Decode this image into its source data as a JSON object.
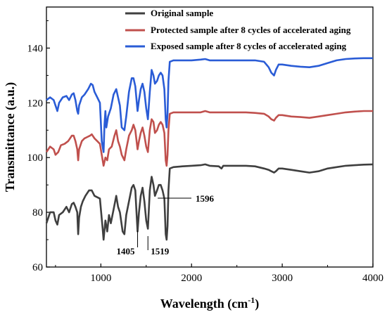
{
  "chart_data": {
    "type": "line",
    "title": "",
    "xlabel": "Wavelength (cm",
    "xlabel_sup": "-1",
    "xlabel_suffix": ")",
    "ylabel": "Transmittance (a.u.)",
    "xlim": [
      400,
      4000
    ],
    "ylim": [
      60,
      155
    ],
    "xticks": [
      1000,
      2000,
      3000,
      4000
    ],
    "yticks": [
      60,
      80,
      100,
      120,
      140
    ],
    "grid": false,
    "legend_position": "top-center",
    "series": [
      {
        "name": "Original sample",
        "color": "#3f3f3f",
        "points": [
          [
            400,
            76
          ],
          [
            440,
            80
          ],
          [
            480,
            80
          ],
          [
            500,
            77
          ],
          [
            520,
            75.5
          ],
          [
            540,
            79
          ],
          [
            580,
            80
          ],
          [
            620,
            82
          ],
          [
            650,
            80
          ],
          [
            680,
            83
          ],
          [
            700,
            83.5
          ],
          [
            720,
            82
          ],
          [
            740,
            80
          ],
          [
            750,
            72
          ],
          [
            760,
            78
          ],
          [
            780,
            82
          ],
          [
            800,
            84
          ],
          [
            830,
            86
          ],
          [
            870,
            88
          ],
          [
            900,
            88
          ],
          [
            930,
            86
          ],
          [
            960,
            85.5
          ],
          [
            990,
            85
          ],
          [
            1020,
            74
          ],
          [
            1030,
            70
          ],
          [
            1050,
            77
          ],
          [
            1070,
            73
          ],
          [
            1090,
            79
          ],
          [
            1110,
            76
          ],
          [
            1140,
            81
          ],
          [
            1170,
            86
          ],
          [
            1190,
            82
          ],
          [
            1210,
            80
          ],
          [
            1240,
            73
          ],
          [
            1260,
            72
          ],
          [
            1280,
            79
          ],
          [
            1310,
            84
          ],
          [
            1340,
            89
          ],
          [
            1360,
            90
          ],
          [
            1380,
            88
          ],
          [
            1405,
            73
          ],
          [
            1420,
            80
          ],
          [
            1440,
            86
          ],
          [
            1460,
            89
          ],
          [
            1480,
            84
          ],
          [
            1500,
            77
          ],
          [
            1519,
            74
          ],
          [
            1540,
            88
          ],
          [
            1560,
            93
          ],
          [
            1580,
            90
          ],
          [
            1596,
            86
          ],
          [
            1620,
            88
          ],
          [
            1640,
            90
          ],
          [
            1660,
            90
          ],
          [
            1680,
            88
          ],
          [
            1700,
            85
          ],
          [
            1715,
            72
          ],
          [
            1725,
            70
          ],
          [
            1735,
            75
          ],
          [
            1745,
            88
          ],
          [
            1760,
            96
          ],
          [
            1800,
            96.5
          ],
          [
            1900,
            96.8
          ],
          [
            2000,
            97
          ],
          [
            2100,
            97.2
          ],
          [
            2150,
            97.5
          ],
          [
            2200,
            97
          ],
          [
            2300,
            96.8
          ],
          [
            2330,
            96
          ],
          [
            2350,
            97
          ],
          [
            2400,
            97
          ],
          [
            2500,
            97
          ],
          [
            2600,
            97
          ],
          [
            2700,
            96.8
          ],
          [
            2800,
            96
          ],
          [
            2850,
            95.5
          ],
          [
            2880,
            95
          ],
          [
            2910,
            94.5
          ],
          [
            2930,
            95
          ],
          [
            2960,
            96
          ],
          [
            3000,
            96
          ],
          [
            3100,
            95.5
          ],
          [
            3200,
            95
          ],
          [
            3300,
            94.5
          ],
          [
            3400,
            95
          ],
          [
            3500,
            96
          ],
          [
            3600,
            96.5
          ],
          [
            3700,
            97
          ],
          [
            3800,
            97.2
          ],
          [
            3900,
            97.4
          ],
          [
            4000,
            97.5
          ]
        ]
      },
      {
        "name": "Protected sample after 8 cycles of accelerated aging",
        "color": "#c0504d",
        "points": [
          [
            400,
            102
          ],
          [
            440,
            104
          ],
          [
            480,
            103
          ],
          [
            500,
            101
          ],
          [
            530,
            102
          ],
          [
            560,
            104.5
          ],
          [
            600,
            105
          ],
          [
            640,
            106
          ],
          [
            680,
            108
          ],
          [
            700,
            108
          ],
          [
            720,
            106
          ],
          [
            740,
            103
          ],
          [
            750,
            99
          ],
          [
            760,
            103
          ],
          [
            790,
            106
          ],
          [
            820,
            107
          ],
          [
            850,
            107.5
          ],
          [
            880,
            108
          ],
          [
            900,
            108.5
          ],
          [
            930,
            107
          ],
          [
            960,
            106
          ],
          [
            990,
            105
          ],
          [
            1010,
            101
          ],
          [
            1030,
            97
          ],
          [
            1050,
            100
          ],
          [
            1070,
            99
          ],
          [
            1090,
            103
          ],
          [
            1120,
            104
          ],
          [
            1150,
            108
          ],
          [
            1170,
            110
          ],
          [
            1190,
            106
          ],
          [
            1210,
            104
          ],
          [
            1230,
            101
          ],
          [
            1260,
            99
          ],
          [
            1280,
            103
          ],
          [
            1310,
            108
          ],
          [
            1340,
            110
          ],
          [
            1360,
            112
          ],
          [
            1380,
            110
          ],
          [
            1405,
            103
          ],
          [
            1420,
            106
          ],
          [
            1440,
            109
          ],
          [
            1460,
            111
          ],
          [
            1480,
            108
          ],
          [
            1500,
            104
          ],
          [
            1519,
            102
          ],
          [
            1540,
            110
          ],
          [
            1560,
            114
          ],
          [
            1580,
            113
          ],
          [
            1596,
            109
          ],
          [
            1620,
            110
          ],
          [
            1640,
            112
          ],
          [
            1660,
            113
          ],
          [
            1680,
            112
          ],
          [
            1700,
            109
          ],
          [
            1715,
            99
          ],
          [
            1725,
            97
          ],
          [
            1735,
            101
          ],
          [
            1745,
            110
          ],
          [
            1760,
            116
          ],
          [
            1800,
            116.5
          ],
          [
            1900,
            116.5
          ],
          [
            2000,
            116.5
          ],
          [
            2100,
            116.5
          ],
          [
            2150,
            117
          ],
          [
            2200,
            116.5
          ],
          [
            2300,
            116.5
          ],
          [
            2400,
            116.5
          ],
          [
            2500,
            116.5
          ],
          [
            2600,
            116.5
          ],
          [
            2700,
            116.3
          ],
          [
            2800,
            116
          ],
          [
            2850,
            115
          ],
          [
            2880,
            114
          ],
          [
            2910,
            113.5
          ],
          [
            2930,
            114.5
          ],
          [
            2960,
            115.5
          ],
          [
            3000,
            115.5
          ],
          [
            3100,
            115
          ],
          [
            3200,
            114.8
          ],
          [
            3300,
            114.5
          ],
          [
            3400,
            115
          ],
          [
            3500,
            115.5
          ],
          [
            3600,
            116
          ],
          [
            3700,
            116.5
          ],
          [
            3800,
            116.8
          ],
          [
            3900,
            117
          ],
          [
            4000,
            117
          ]
        ]
      },
      {
        "name": "Exposed sample after 8 cycles of accelerated aging",
        "color": "#2a5cd6",
        "points": [
          [
            400,
            121
          ],
          [
            440,
            122
          ],
          [
            480,
            121
          ],
          [
            500,
            119
          ],
          [
            520,
            117
          ],
          [
            540,
            120
          ],
          [
            580,
            122
          ],
          [
            620,
            122.5
          ],
          [
            650,
            121
          ],
          [
            680,
            123
          ],
          [
            700,
            123.5
          ],
          [
            720,
            121
          ],
          [
            740,
            117
          ],
          [
            750,
            116
          ],
          [
            760,
            119
          ],
          [
            790,
            122
          ],
          [
            820,
            123
          ],
          [
            860,
            125
          ],
          [
            890,
            127
          ],
          [
            910,
            126.5
          ],
          [
            930,
            124
          ],
          [
            960,
            122
          ],
          [
            990,
            120
          ],
          [
            1010,
            106
          ],
          [
            1030,
            102
          ],
          [
            1040,
            112
          ],
          [
            1050,
            117
          ],
          [
            1060,
            111
          ],
          [
            1080,
            115
          ],
          [
            1110,
            118
          ],
          [
            1140,
            123
          ],
          [
            1170,
            125
          ],
          [
            1190,
            122
          ],
          [
            1210,
            119
          ],
          [
            1230,
            111
          ],
          [
            1260,
            110
          ],
          [
            1280,
            115
          ],
          [
            1310,
            124
          ],
          [
            1340,
            129
          ],
          [
            1360,
            129
          ],
          [
            1380,
            126
          ],
          [
            1405,
            117
          ],
          [
            1420,
            121
          ],
          [
            1440,
            125
          ],
          [
            1460,
            127
          ],
          [
            1480,
            124
          ],
          [
            1500,
            118
          ],
          [
            1519,
            114
          ],
          [
            1540,
            124
          ],
          [
            1560,
            132
          ],
          [
            1580,
            130
          ],
          [
            1596,
            127
          ],
          [
            1620,
            128
          ],
          [
            1640,
            130
          ],
          [
            1660,
            131
          ],
          [
            1680,
            130
          ],
          [
            1700,
            125
          ],
          [
            1715,
            114
          ],
          [
            1725,
            111
          ],
          [
            1735,
            116
          ],
          [
            1745,
            128
          ],
          [
            1760,
            135
          ],
          [
            1800,
            135.5
          ],
          [
            1900,
            135.5
          ],
          [
            2000,
            135.5
          ],
          [
            2100,
            135.8
          ],
          [
            2150,
            136
          ],
          [
            2200,
            135.5
          ],
          [
            2300,
            135.5
          ],
          [
            2400,
            135.5
          ],
          [
            2500,
            135.5
          ],
          [
            2600,
            135.5
          ],
          [
            2700,
            135.5
          ],
          [
            2800,
            135
          ],
          [
            2850,
            133
          ],
          [
            2880,
            131
          ],
          [
            2910,
            130
          ],
          [
            2930,
            132
          ],
          [
            2960,
            134
          ],
          [
            3000,
            134
          ],
          [
            3100,
            133.5
          ],
          [
            3200,
            133.2
          ],
          [
            3300,
            133
          ],
          [
            3400,
            133.5
          ],
          [
            3500,
            134.5
          ],
          [
            3600,
            135.5
          ],
          [
            3700,
            136
          ],
          [
            3800,
            136.2
          ],
          [
            3900,
            136.3
          ],
          [
            4000,
            136.3
          ]
        ]
      }
    ],
    "annotations": [
      {
        "text": "1405",
        "x": 1405
      },
      {
        "text": "1519",
        "x": 1519
      },
      {
        "text": "1596",
        "x": 1596
      }
    ]
  }
}
